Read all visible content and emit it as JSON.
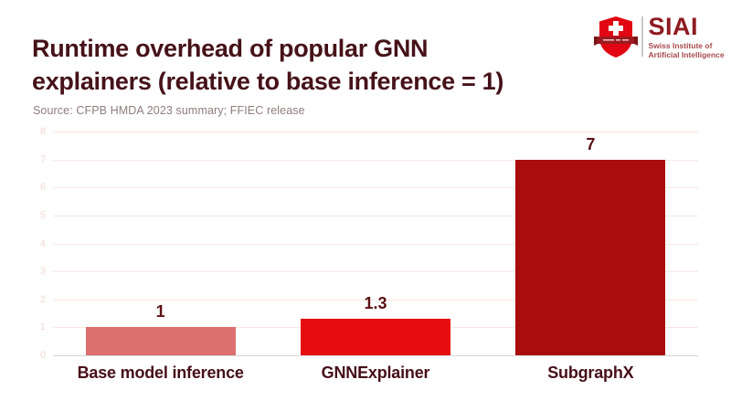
{
  "header": {
    "title_line1": "Runtime overhead of popular GNN",
    "title_line2": "explainers (relative to base inference = 1)",
    "source": "Source: CFPB HMDA 2023 summary; FFIEC release",
    "title_color": "#461219",
    "source_color": "#8f7d7c"
  },
  "logo": {
    "wordmark": "SIAI",
    "subtitle_line1": "Swiss Institute of",
    "subtitle_line2": "Artificial Intelligence",
    "shield_color": "#e20613",
    "banner_color": "#9b1b20",
    "wordmark_color": "#8e1b20",
    "subtitle_color": "#a84a4e"
  },
  "chart_data": {
    "type": "bar",
    "title": "Runtime overhead of popular GNN explainers (relative to base inference = 1)",
    "categories": [
      "Base model inference",
      "GNNExplainer",
      "SubgraphX"
    ],
    "values": [
      1,
      1.3,
      7
    ],
    "value_labels": [
      "1",
      "1.3",
      "7"
    ],
    "bar_colors": [
      "#dd6f6f",
      "#e60d10",
      "#a90c0d"
    ],
    "xlabel": "",
    "ylabel": "",
    "ylim": [
      0,
      8
    ],
    "yticks": [
      0,
      1,
      2,
      3,
      4,
      5,
      6,
      7,
      8
    ],
    "grid": true,
    "legend": "none",
    "gridline_color": "#f8e7e2",
    "baseline_color": "#d8d8d8",
    "tick_label_color": "#f3d8d3",
    "value_label_color": "#5c1115",
    "category_label_color": "#460f18"
  }
}
